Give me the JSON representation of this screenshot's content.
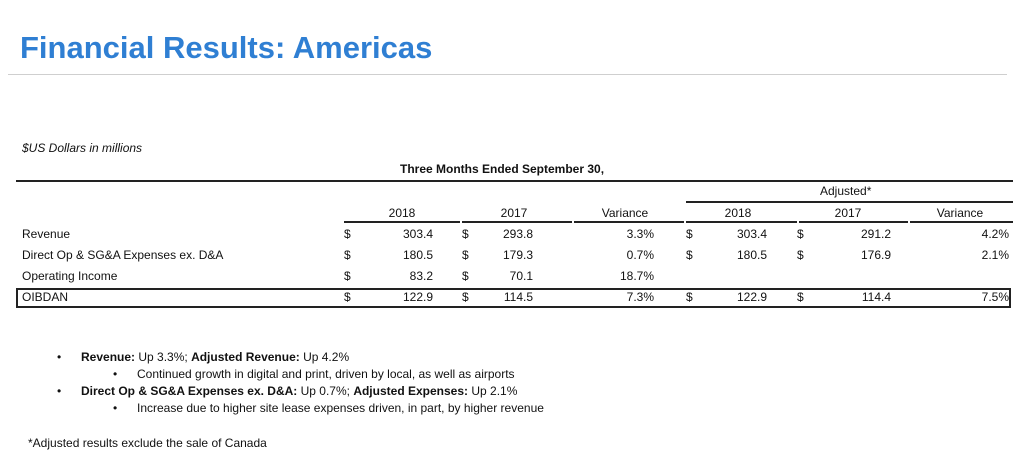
{
  "title": "Financial Results: Americas",
  "units": "$US Dollars in millions",
  "period": "Three Months Ended September 30,",
  "adjusted_header": "Adjusted*",
  "columns": [
    "2018",
    "2017",
    "Variance",
    "2018",
    "2017",
    "Variance"
  ],
  "currency": "$",
  "rows": [
    {
      "label": "Revenue",
      "v": [
        "303.4",
        "293.8",
        "3.3%",
        "303.4",
        "291.2",
        "4.2%"
      ]
    },
    {
      "label": "Direct Op & SG&A Expenses ex. D&A",
      "v": [
        "180.5",
        "179.3",
        "0.7%",
        "180.5",
        "176.9",
        "2.1%"
      ]
    },
    {
      "label": "Operating Income",
      "v": [
        "83.2",
        "70.1",
        "18.7%",
        "",
        "",
        ""
      ]
    },
    {
      "label": "OIBDAN",
      "v": [
        "122.9",
        "114.5",
        "7.3%",
        "122.9",
        "114.4",
        "7.5%"
      ]
    }
  ],
  "bullets": [
    {
      "bold1": "Revenue:",
      "text1": " Up 3.3%; ",
      "bold2": "Adjusted Revenue:",
      "text2": " Up 4.2%",
      "sub": "Continued growth in digital and print, driven by local, as well as airports"
    },
    {
      "bold1": "Direct Op & SG&A Expenses ex. D&A:",
      "text1": " Up 0.7%; ",
      "bold2": "Adjusted Expenses:",
      "text2": " Up 2.1%",
      "sub": "Increase due to higher site lease expenses driven, in part, by higher revenue"
    }
  ],
  "footnote": "*Adjusted results exclude the sale of Canada"
}
